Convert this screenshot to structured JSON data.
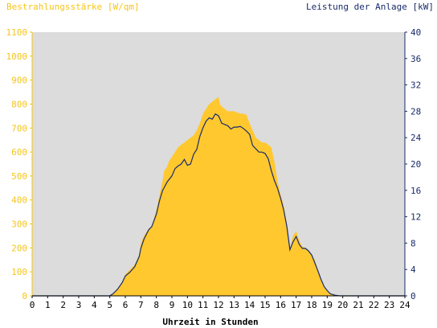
{
  "chart_data": {
    "type": "area",
    "left_axis_title": "Bestrahlungsstärke [W/qm]",
    "right_axis_title": "Leistung der Anlage [kW]",
    "xlabel": "Uhrzeit in Stunden",
    "xlim": [
      0,
      24
    ],
    "x_ticks": [
      "0",
      "1",
      "2",
      "3",
      "4",
      "5",
      "6",
      "7",
      "8",
      "9",
      "10",
      "11",
      "12",
      "13",
      "14",
      "15",
      "16",
      "17",
      "18",
      "19",
      "20",
      "21",
      "22",
      "23",
      "24"
    ],
    "ylim_left": [
      0,
      1100
    ],
    "y_ticks_left": [
      "0",
      "100",
      "200",
      "300",
      "400",
      "500",
      "600",
      "700",
      "800",
      "900",
      "1000",
      "1100"
    ],
    "ylim_right": [
      0,
      40
    ],
    "y_ticks_right": [
      "0",
      "4",
      "8",
      "12",
      "16",
      "20",
      "24",
      "28",
      "32",
      "36",
      "40"
    ],
    "grid": false,
    "colors": {
      "left_axis": "#f5c518",
      "right_axis": "#1a2b6b",
      "area_fill": "#ffc82e",
      "plot_bg": "#dcdcdc",
      "line": "#1a2b6b"
    },
    "series": [
      {
        "name": "Bestrahlungsstärke [W/qm]",
        "axis": "left",
        "kind": "area",
        "x": [
          0,
          5,
          5.2,
          5.5,
          5.8,
          6,
          6.3,
          6.6,
          6.9,
          7,
          7.2,
          7.5,
          7.7,
          8,
          8.2,
          8.4,
          8.5,
          8.7,
          8.8,
          9,
          9.2,
          9.4,
          9.6,
          9.8,
          10,
          10.2,
          10.4,
          10.6,
          10.8,
          11,
          11.2,
          11.4,
          11.6,
          11.8,
          12,
          12.1,
          12.2,
          12.4,
          12.6,
          12.8,
          13,
          13.2,
          13.4,
          13.6,
          13.8,
          14,
          14.2,
          14.4,
          14.6,
          14.8,
          15,
          15.2,
          15.4,
          15.6,
          15.8,
          16,
          16.2,
          16.4,
          16.6,
          16.8,
          17,
          17.2,
          17.4,
          17.6,
          17.8,
          18,
          18.2,
          18.4,
          18.6,
          18.8,
          19,
          19.2,
          19.5,
          19.8,
          20,
          24
        ],
        "y": [
          0,
          0,
          10,
          30,
          60,
          90,
          110,
          130,
          170,
          220,
          250,
          280,
          290,
          360,
          420,
          480,
          520,
          540,
          560,
          580,
          600,
          620,
          630,
          640,
          650,
          660,
          670,
          690,
          720,
          760,
          780,
          800,
          810,
          820,
          830,
          800,
          790,
          780,
          770,
          770,
          770,
          765,
          760,
          760,
          755,
          720,
          690,
          660,
          650,
          640,
          640,
          630,
          620,
          560,
          480,
          420,
          380,
          300,
          190,
          250,
          270,
          230,
          205,
          200,
          190,
          170,
          150,
          110,
          70,
          40,
          20,
          10,
          5,
          0,
          0,
          0
        ]
      },
      {
        "name": "Leistung der Anlage [kW]",
        "axis": "right",
        "kind": "line",
        "x": [
          0,
          5,
          5.2,
          5.5,
          5.8,
          6,
          6.3,
          6.6,
          6.9,
          7,
          7.2,
          7.5,
          7.7,
          8,
          8.2,
          8.4,
          8.5,
          8.7,
          8.8,
          9,
          9.2,
          9.4,
          9.6,
          9.8,
          10,
          10.2,
          10.4,
          10.6,
          10.8,
          11,
          11.2,
          11.4,
          11.6,
          11.8,
          12,
          12.1,
          12.2,
          12.4,
          12.6,
          12.8,
          13,
          13.2,
          13.4,
          13.6,
          13.8,
          14,
          14.2,
          14.4,
          14.6,
          14.8,
          15,
          15.2,
          15.4,
          15.6,
          15.8,
          16,
          16.2,
          16.4,
          16.6,
          16.8,
          17,
          17.2,
          17.4,
          17.6,
          17.8,
          18,
          18.2,
          18.4,
          18.6,
          18.8,
          19,
          19.2,
          19.5,
          19.8,
          20,
          24
        ],
        "y": [
          0,
          0,
          0.3,
          1.0,
          2.0,
          3.0,
          3.6,
          4.4,
          6.0,
          7.2,
          8.6,
          10.0,
          10.5,
          12.4,
          14.4,
          16.0,
          16.4,
          17.3,
          17.6,
          18.2,
          19.3,
          19.7,
          20.0,
          20.7,
          19.8,
          20.0,
          21.5,
          22.2,
          24.2,
          25.5,
          26.5,
          27.0,
          26.8,
          27.6,
          27.3,
          26.8,
          26.2,
          26.0,
          25.8,
          25.3,
          25.6,
          25.6,
          25.7,
          25.4,
          25.0,
          24.5,
          22.8,
          22.3,
          21.8,
          21.8,
          21.6,
          20.8,
          19.0,
          17.5,
          16.3,
          14.8,
          13.0,
          10.5,
          7.0,
          8.2,
          9.0,
          7.8,
          7.2,
          7.2,
          6.8,
          6.2,
          5.0,
          3.8,
          2.5,
          1.4,
          0.8,
          0.3,
          0.1,
          0,
          0,
          0
        ]
      }
    ]
  }
}
